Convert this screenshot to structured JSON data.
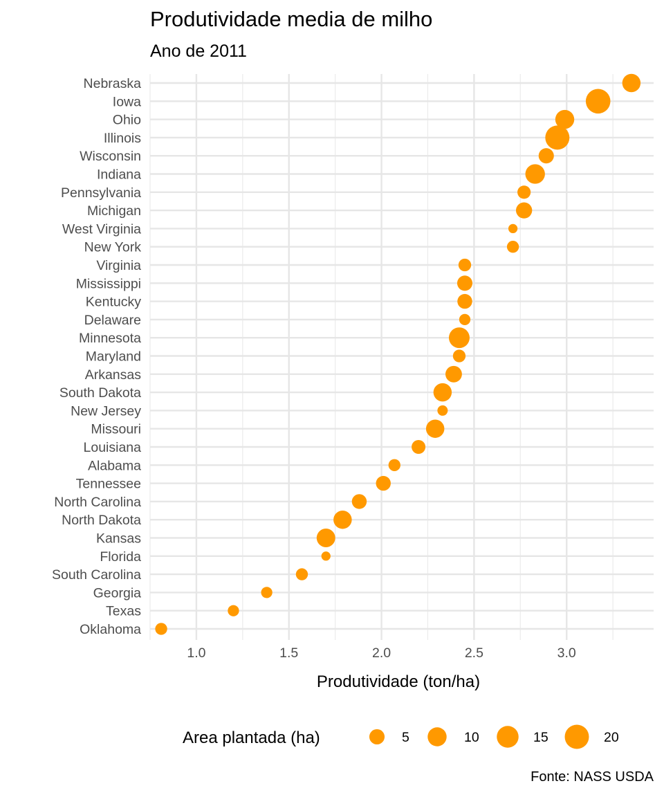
{
  "chart_data": {
    "type": "scatter",
    "title": "Produtividade media de milho",
    "subtitle": "Ano de 2011",
    "xlabel": "Produtividade (ton/ha)",
    "ylabel": "",
    "caption": "Fonte: NASS USDA",
    "xlim": [
      0.75,
      3.47
    ],
    "x_ticks": [
      1.0,
      1.5,
      2.0,
      2.5,
      3.0
    ],
    "x_tick_labels": [
      "1.0",
      "1.5",
      "2.0",
      "2.5",
      "3.0"
    ],
    "grid": true,
    "point_color": "#FF9900",
    "legend": {
      "title": "Area plantada (ha)",
      "position": "bottom",
      "values": [
        5,
        10,
        15,
        20
      ],
      "labels": [
        "5",
        "10",
        "15",
        "20"
      ]
    },
    "categories": [
      "Nebraska",
      "Iowa",
      "Ohio",
      "Illinois",
      "Wisconsin",
      "Indiana",
      "Pennsylvania",
      "Michigan",
      "West Virginia",
      "New York",
      "Virginia",
      "Mississippi",
      "Kentucky",
      "Delaware",
      "Minnesota",
      "Maryland",
      "Arkansas",
      "South Dakota",
      "New Jersey",
      "Missouri",
      "Louisiana",
      "Alabama",
      "Tennessee",
      "North Carolina",
      "North Dakota",
      "Kansas",
      "Florida",
      "South Carolina",
      "Georgia",
      "Texas",
      "Oklahoma"
    ],
    "points": [
      {
        "state": "Nebraska",
        "x": 3.35,
        "area": 9
      },
      {
        "state": "Iowa",
        "x": 3.17,
        "area": 21
      },
      {
        "state": "Ohio",
        "x": 2.99,
        "area": 10
      },
      {
        "state": "Illinois",
        "x": 2.95,
        "area": 20
      },
      {
        "state": "Wisconsin",
        "x": 2.89,
        "area": 5
      },
      {
        "state": "Indiana",
        "x": 2.83,
        "area": 11
      },
      {
        "state": "Pennsylvania",
        "x": 2.77,
        "area": 3
      },
      {
        "state": "Michigan",
        "x": 2.77,
        "area": 6
      },
      {
        "state": "West Virginia",
        "x": 2.71,
        "area": 0.5
      },
      {
        "state": "New York",
        "x": 2.71,
        "area": 2
      },
      {
        "state": "Virginia",
        "x": 2.45,
        "area": 2.5
      },
      {
        "state": "Mississippi",
        "x": 2.45,
        "area": 5
      },
      {
        "state": "Kentucky",
        "x": 2.45,
        "area": 4.5
      },
      {
        "state": "Delaware",
        "x": 2.45,
        "area": 1.5
      },
      {
        "state": "Minnesota",
        "x": 2.42,
        "area": 13
      },
      {
        "state": "Maryland",
        "x": 2.42,
        "area": 2.5
      },
      {
        "state": "Arkansas",
        "x": 2.39,
        "area": 6.5
      },
      {
        "state": "South Dakota",
        "x": 2.33,
        "area": 9
      },
      {
        "state": "New Jersey",
        "x": 2.33,
        "area": 1
      },
      {
        "state": "Missouri",
        "x": 2.29,
        "area": 9
      },
      {
        "state": "Louisiana",
        "x": 2.2,
        "area": 3.5
      },
      {
        "state": "Alabama",
        "x": 2.07,
        "area": 2
      },
      {
        "state": "Tennessee",
        "x": 2.01,
        "area": 4.5
      },
      {
        "state": "North Carolina",
        "x": 1.88,
        "area": 4.5
      },
      {
        "state": "North Dakota",
        "x": 1.79,
        "area": 9
      },
      {
        "state": "Kansas",
        "x": 1.7,
        "area": 9.5
      },
      {
        "state": "Florida",
        "x": 1.7,
        "area": 0.5
      },
      {
        "state": "South Carolina",
        "x": 1.57,
        "area": 2
      },
      {
        "state": "Georgia",
        "x": 1.38,
        "area": 1.5
      },
      {
        "state": "Texas",
        "x": 1.2,
        "area": 1.5
      },
      {
        "state": "Oklahoma",
        "x": 0.81,
        "area": 2
      }
    ]
  }
}
